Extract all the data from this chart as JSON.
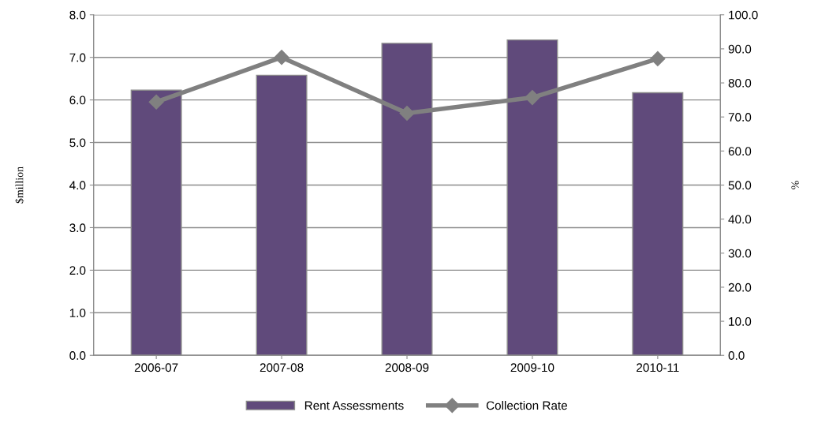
{
  "chart_data": {
    "type": "bar",
    "categories": [
      "2006-07",
      "2007-08",
      "2008-09",
      "2009-10",
      "2010-11"
    ],
    "ylabel": "$million",
    "y2label": "%",
    "series": [
      {
        "name": "Rent Assessments",
        "color": "#604a7b",
        "values": [
          6.23,
          6.58,
          7.33,
          7.41,
          6.17
        ]
      },
      {
        "name": "Collection Rate",
        "type": "line",
        "axis": "y2",
        "color": "#808080",
        "marker": "diamond",
        "values": [
          74.4,
          87.5,
          71.1,
          75.7,
          87.1
        ]
      }
    ],
    "ylim": [
      0,
      8
    ],
    "yticks": [
      {
        "value": 0,
        "label": "0.0"
      },
      {
        "value": 1,
        "label": "1.0"
      },
      {
        "value": 2,
        "label": "2.0"
      },
      {
        "value": 3,
        "label": "3.0"
      },
      {
        "value": 4,
        "label": "4.0"
      },
      {
        "value": 5,
        "label": "5.0"
      },
      {
        "value": 6,
        "label": "6.0"
      },
      {
        "value": 7,
        "label": "7.0"
      },
      {
        "value": 8,
        "label": "8.0"
      }
    ],
    "y2lim": [
      0,
      100
    ],
    "y2ticks": [
      {
        "value": 0,
        "label": "0.0"
      },
      {
        "value": 10,
        "label": "10.0"
      },
      {
        "value": 20,
        "label": "20.0"
      },
      {
        "value": 30,
        "label": "30.0"
      },
      {
        "value": 40,
        "label": "40.0"
      },
      {
        "value": 50,
        "label": "50.0"
      },
      {
        "value": 60,
        "label": "60.0"
      },
      {
        "value": 70,
        "label": "70.0"
      },
      {
        "value": 80,
        "label": "80.0"
      },
      {
        "value": 90,
        "label": "90.0"
      },
      {
        "value": 100,
        "label": "100.0"
      }
    ],
    "grid": "y",
    "legend": "bottom"
  }
}
